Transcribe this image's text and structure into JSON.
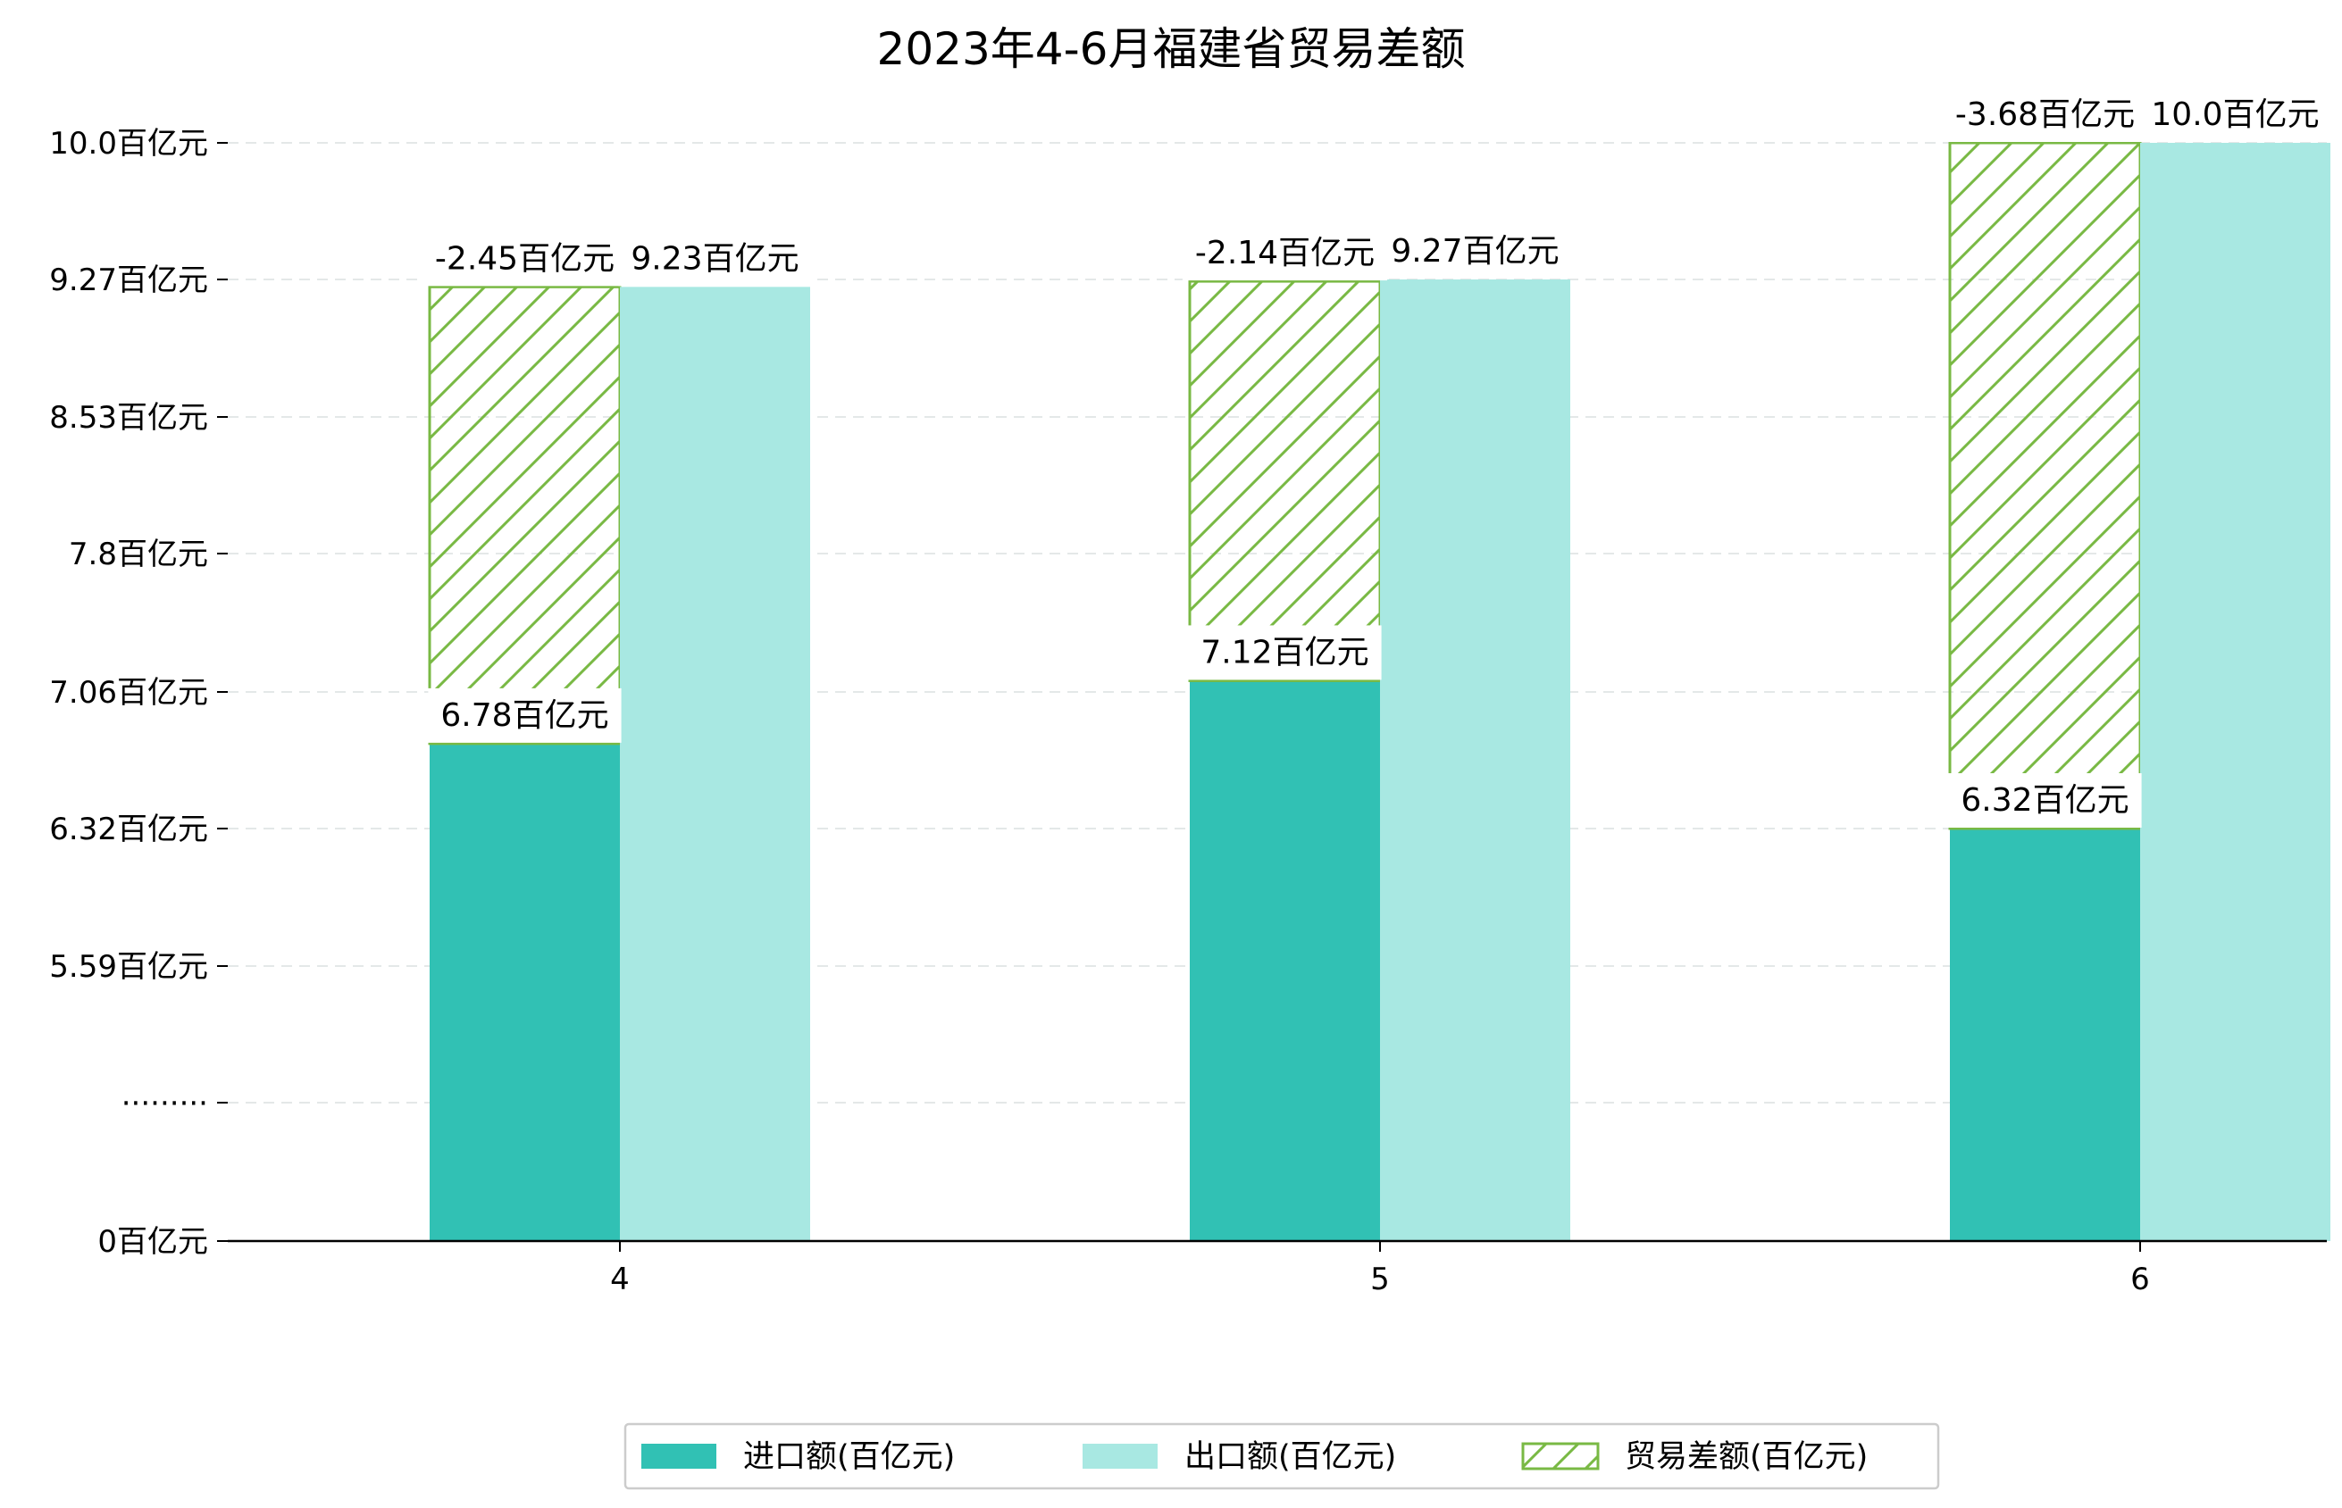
{
  "chart_data": {
    "type": "bar",
    "title": "2023年4-6月福建省贸易差额",
    "categories": [
      "4",
      "5",
      "6"
    ],
    "y_ticks": [
      "0百亿元",
      "·········",
      "5.59百亿元",
      "6.32百亿元",
      "7.06百亿元",
      "7.8百亿元",
      "8.53百亿元",
      "9.27百亿元",
      "10.0百亿元"
    ],
    "y_tick_values": [
      0,
      4.85,
      5.59,
      6.32,
      7.06,
      7.8,
      8.53,
      9.27,
      10.0
    ],
    "axis_break": true,
    "grid": "horizontal dashed",
    "legend_position": "bottom-center",
    "series": [
      {
        "name": "进口额(百亿元)",
        "color": "#31c1b4",
        "values": [
          6.78,
          7.12,
          6.32
        ],
        "labels": [
          "6.78百亿元",
          "7.12百亿元",
          "6.32百亿元"
        ]
      },
      {
        "name": "出口额(百亿元)",
        "color": "#a8e8e2",
        "values": [
          9.23,
          9.27,
          10.0
        ],
        "labels": [
          "9.23百亿元",
          "9.27百亿元",
          "10.0百亿元"
        ]
      },
      {
        "name": "贸易差额(百亿元)",
        "color": "#79b944",
        "pattern": "hatch",
        "values": [
          -2.45,
          -2.14,
          -3.68
        ],
        "labels": [
          "-2.45百亿元",
          "-2.14百亿元",
          "-3.68百亿元"
        ]
      }
    ]
  }
}
